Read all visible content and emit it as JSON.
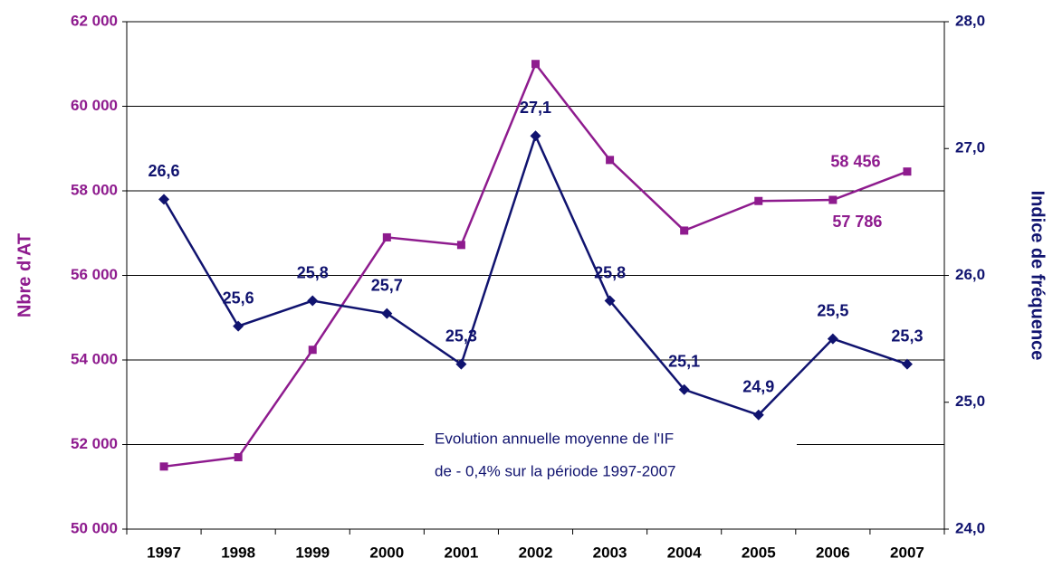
{
  "chart_data": {
    "type": "line",
    "categories": [
      "1997",
      "1998",
      "1999",
      "2000",
      "2001",
      "2002",
      "2003",
      "2004",
      "2005",
      "2006",
      "2007"
    ],
    "series": [
      {
        "name": "Nbre d'AT",
        "color": "#8e1b8e",
        "marker": "square",
        "values": [
          51480,
          51700,
          54240,
          56900,
          56720,
          61000,
          58730,
          57060,
          57760,
          57786,
          58456
        ],
        "value_labels": [
          null,
          null,
          null,
          null,
          null,
          null,
          null,
          null,
          null,
          "57 786",
          "58 456"
        ]
      },
      {
        "name": "Indice de fréquence",
        "color": "#10136f",
        "marker": "diamond",
        "axis": "y2",
        "values": [
          26.6,
          25.6,
          25.8,
          25.7,
          25.3,
          27.1,
          25.8,
          25.1,
          24.9,
          25.5,
          25.3
        ],
        "value_labels": [
          "26,6",
          "25,6",
          "25,8",
          "25,7",
          "25,3",
          "27,1",
          "25,8",
          "25,1",
          "24,9",
          "25,5",
          "25,3"
        ]
      }
    ],
    "ylabel": "Nbre d'AT",
    "y2label": "Indice de fréquence",
    "ylim": [
      50000,
      62000
    ],
    "yticks": [
      {
        "value": 50000,
        "label": "50 000"
      },
      {
        "value": 52000,
        "label": "52 000"
      },
      {
        "value": 54000,
        "label": "54 000"
      },
      {
        "value": 56000,
        "label": "56 000"
      },
      {
        "value": 58000,
        "label": "58 000"
      },
      {
        "value": 60000,
        "label": "60 000"
      },
      {
        "value": 62000,
        "label": "62 000"
      }
    ],
    "y2lim": [
      24,
      28
    ],
    "y2ticks": [
      {
        "value": 24,
        "label": "24,0"
      },
      {
        "value": 25,
        "label": "25,0"
      },
      {
        "value": 26,
        "label": "26,0"
      },
      {
        "value": 27,
        "label": "27,0"
      },
      {
        "value": 28,
        "label": "28,0"
      }
    ],
    "grid": true,
    "annotation": [
      "Evolution annuelle moyenne de l'IF",
      "de - 0,4% sur la période 1997-2007"
    ]
  }
}
